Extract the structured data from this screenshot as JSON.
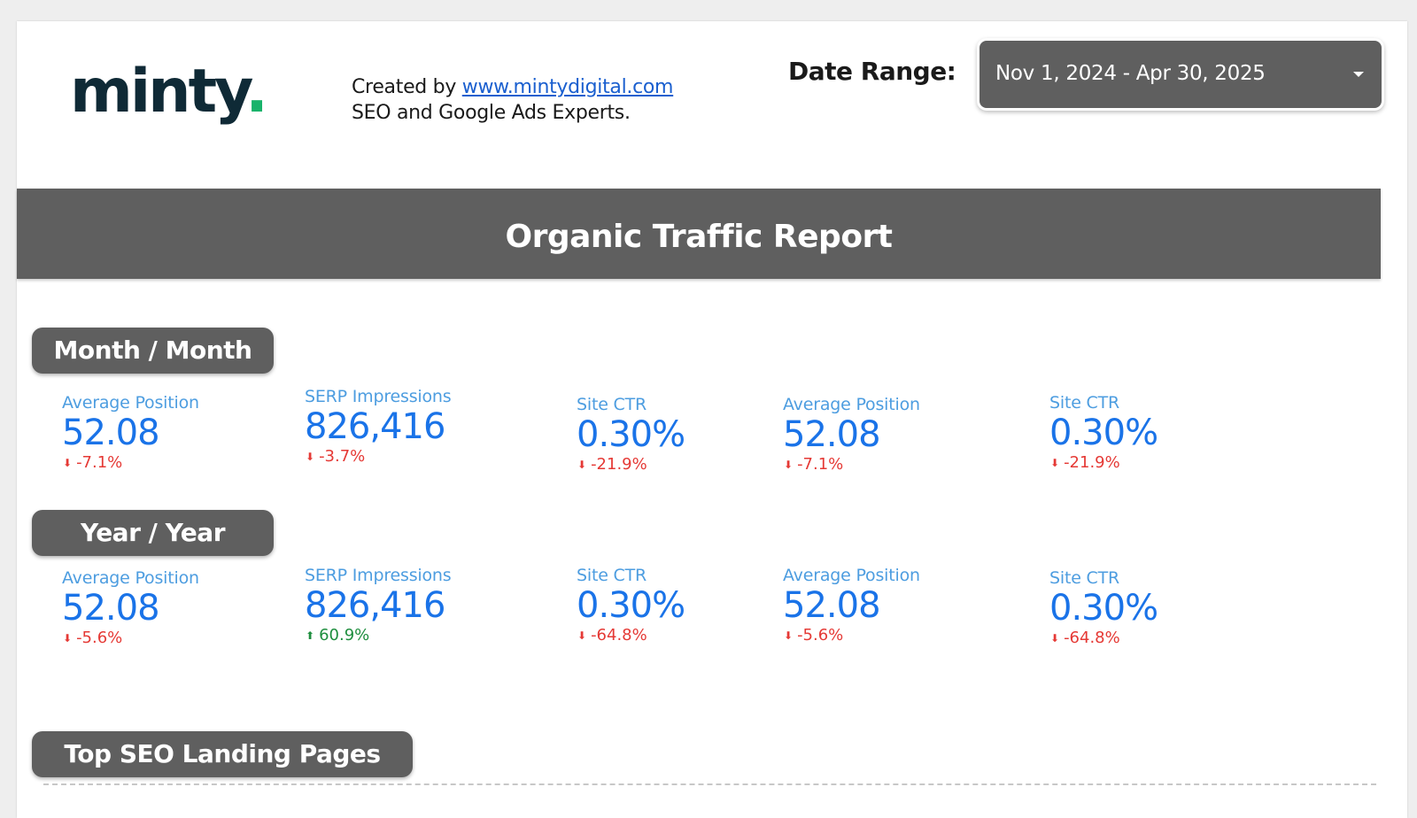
{
  "header": {
    "logo_text": "minty",
    "logo_dot": ".",
    "credit_prefix": "Created by ",
    "credit_link": "www.mintydigital.com",
    "credit_tagline": "SEO and Google Ads Experts.",
    "date_range_label": "Date Range:",
    "date_range_value": "Nov 1, 2024 - Apr 30, 2025"
  },
  "banner": {
    "title": "Organic Traffic Report"
  },
  "sections": {
    "month": {
      "title": "Month / Month",
      "metrics": [
        {
          "label": "Average Position",
          "value": "52.08",
          "delta": "-7.1%",
          "direction": "down"
        },
        {
          "label": "SERP Impressions",
          "value": "826,416",
          "delta": "-3.7%",
          "direction": "down"
        },
        {
          "label": "Site CTR",
          "value": "0.30%",
          "delta": "-21.9%",
          "direction": "down"
        },
        {
          "label": "Average Position",
          "value": "52.08",
          "delta": "-7.1%",
          "direction": "down"
        },
        {
          "label": "Site CTR",
          "value": "0.30%",
          "delta": "-21.9%",
          "direction": "down"
        }
      ]
    },
    "year": {
      "title": "Year / Year",
      "metrics": [
        {
          "label": "Average Position",
          "value": "52.08",
          "delta": "-5.6%",
          "direction": "down"
        },
        {
          "label": "SERP Impressions",
          "value": "826,416",
          "delta": "60.9%",
          "direction": "up"
        },
        {
          "label": "Site CTR",
          "value": "0.30%",
          "delta": "-64.8%",
          "direction": "down"
        },
        {
          "label": "Average Position",
          "value": "52.08",
          "delta": "-5.6%",
          "direction": "down"
        },
        {
          "label": "Site CTR",
          "value": "0.30%",
          "delta": "-64.8%",
          "direction": "down"
        }
      ]
    },
    "landing": {
      "title": "Top SEO Landing Pages"
    }
  },
  "icons": {
    "down": "arrow-down-icon",
    "up": "arrow-up-icon"
  },
  "colors": {
    "metric_label": "#4d9de0",
    "metric_value": "#1a73e8",
    "negative": "#e53935",
    "positive": "#1e8e3e",
    "header_bar": "#5f5f5f",
    "logo_dot": "#19b36b"
  }
}
